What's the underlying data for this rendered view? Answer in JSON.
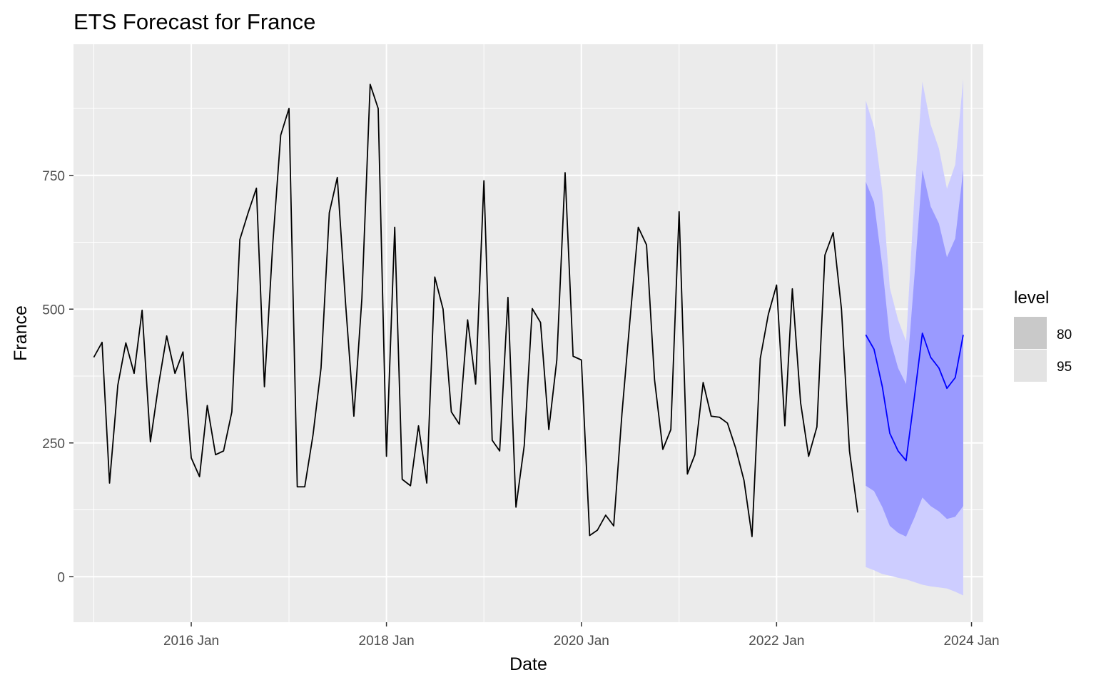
{
  "chart_data": {
    "type": "line",
    "title": "ETS Forecast for France",
    "xlabel": "Date",
    "ylabel": "France",
    "ylim": [
      -85,
      995
    ],
    "xlim": [
      "2014-10-17",
      "2024-02-14"
    ],
    "y_ticks": [
      0,
      250,
      500,
      750
    ],
    "x_ticks": [
      {
        "date": "2016-01-01",
        "label": "2016 Jan"
      },
      {
        "date": "2018-01-01",
        "label": "2018 Jan"
      },
      {
        "date": "2020-01-01",
        "label": "2020 Jan"
      },
      {
        "date": "2022-01-01",
        "label": "2022 Jan"
      },
      {
        "date": "2024-01-01",
        "label": "2024 Jan"
      }
    ],
    "grid": true,
    "legend": {
      "title": "level",
      "position": "right",
      "entries": [
        {
          "label": "80",
          "color": "#c9c9c9"
        },
        {
          "label": "95",
          "color": "#e3e3e3"
        }
      ]
    },
    "colors": {
      "panel": "#ebebeb",
      "grid": "#ffffff",
      "history": "#000000",
      "forecast": "#0000ff",
      "band80": "#9a9aff",
      "band95": "#cdcdff"
    },
    "series": [
      {
        "kind": "history",
        "start": "2015-01",
        "values": [
          410,
          438,
          175,
          358,
          437,
          380,
          498,
          252,
          360,
          450,
          380,
          420,
          222,
          187,
          320,
          228,
          235,
          308,
          630,
          680,
          726,
          355,
          620,
          825,
          875,
          168,
          168,
          265,
          390,
          680,
          746,
          510,
          300,
          520,
          920,
          875,
          225,
          653,
          182,
          170,
          282,
          175,
          560,
          500,
          308,
          285,
          480,
          360,
          740,
          255,
          235,
          522,
          130,
          245,
          501,
          475,
          275,
          405,
          755,
          412,
          405,
          77,
          87,
          115,
          95,
          305,
          480,
          653,
          620,
          368,
          238,
          275,
          682,
          192,
          228,
          363,
          300,
          298,
          287,
          240,
          180,
          75,
          408,
          490,
          545,
          282,
          538,
          325,
          225,
          280,
          601,
          643,
          500,
          235,
          120
        ]
      },
      {
        "kind": "forecast",
        "start": "2022-12",
        "values": [
          452,
          425,
          355,
          268,
          235,
          217,
          335,
          455,
          410,
          390,
          352,
          372,
          452
        ],
        "lo80": [
          170,
          160,
          130,
          95,
          82,
          75,
          110,
          148,
          132,
          122,
          108,
          112,
          132
        ],
        "hi80": [
          738,
          700,
          580,
          445,
          390,
          360,
          560,
          760,
          692,
          660,
          597,
          632,
          760
        ],
        "lo95": [
          18,
          12,
          5,
          2,
          -2,
          -5,
          -10,
          -15,
          -18,
          -20,
          -22,
          -28,
          -35
        ],
        "hi95": [
          890,
          840,
          720,
          540,
          480,
          440,
          710,
          925,
          845,
          800,
          725,
          770,
          930
        ]
      }
    ]
  }
}
